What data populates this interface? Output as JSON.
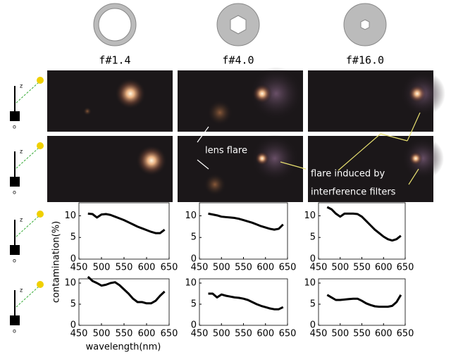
{
  "apertures": [
    "f#1.4",
    "f#4.0",
    "f#16.0"
  ],
  "setup_labels": {
    "axis": "z",
    "origin": "o"
  },
  "annotations": {
    "lens_flare": "lens flare",
    "filter_flare": [
      "flare induced by",
      "interference filters"
    ]
  },
  "y_label": "contamination(%)",
  "x_label": "wavelength(nm)",
  "chart_data": [
    {
      "type": "line",
      "x": [
        470,
        480,
        490,
        500,
        510,
        520,
        530,
        540,
        550,
        560,
        570,
        580,
        590,
        600,
        610,
        620,
        630,
        640
      ],
      "series": [
        {
          "color": "#000000",
          "values": [
            10.5,
            10.4,
            9.6,
            10.3,
            10.4,
            10.2,
            9.8,
            9.4,
            9.0,
            8.5,
            8.0,
            7.5,
            7.1,
            6.7,
            6.3,
            6.0,
            6.0,
            6.8
          ]
        }
      ],
      "xlim": [
        450,
        650
      ],
      "ylim": [
        0,
        13
      ],
      "xticks": [
        450,
        500,
        550,
        600,
        650
      ],
      "yticks": [
        0,
        5,
        10
      ]
    },
    {
      "type": "line",
      "x": [
        470,
        480,
        490,
        500,
        510,
        520,
        530,
        540,
        550,
        560,
        570,
        580,
        590,
        600,
        610,
        620,
        630,
        640
      ],
      "series": [
        {
          "color": "#000000",
          "values": [
            10.5,
            10.3,
            10.1,
            9.8,
            9.7,
            9.6,
            9.5,
            9.3,
            9.0,
            8.7,
            8.4,
            8.0,
            7.6,
            7.3,
            7.0,
            6.8,
            7.0,
            8.0
          ]
        }
      ],
      "xlim": [
        450,
        650
      ],
      "ylim": [
        0,
        13
      ],
      "xticks": [
        450,
        500,
        550,
        600,
        650
      ],
      "yticks": [
        0,
        5,
        10
      ]
    },
    {
      "type": "line",
      "x": [
        470,
        480,
        490,
        500,
        510,
        520,
        530,
        540,
        550,
        560,
        570,
        580,
        590,
        600,
        610,
        620,
        630,
        640
      ],
      "series": [
        {
          "color": "#000000",
          "values": [
            12,
            11.5,
            10.5,
            9.8,
            10.5,
            10.5,
            10.5,
            10.4,
            9.8,
            8.8,
            7.8,
            6.8,
            6.0,
            5.2,
            4.6,
            4.3,
            4.6,
            5.4
          ]
        }
      ],
      "xlim": [
        450,
        650
      ],
      "ylim": [
        0,
        13
      ],
      "xticks": [
        450,
        500,
        550,
        600,
        650
      ],
      "yticks": [
        0,
        5,
        10
      ]
    },
    {
      "type": "line",
      "x": [
        470,
        480,
        490,
        500,
        510,
        520,
        530,
        540,
        550,
        560,
        570,
        580,
        590,
        600,
        610,
        620,
        630,
        640
      ],
      "series": [
        {
          "color": "#000000",
          "values": [
            11.5,
            10.5,
            10.0,
            9.4,
            9.6,
            10.0,
            10.2,
            9.5,
            8.5,
            7.5,
            6.3,
            5.5,
            5.5,
            5.2,
            5.2,
            5.8,
            7.0,
            8.0
          ]
        }
      ],
      "xlim": [
        450,
        650
      ],
      "ylim": [
        0,
        11
      ],
      "xticks": [
        450,
        500,
        550,
        600,
        650
      ],
      "yticks": [
        0,
        5,
        10
      ]
    },
    {
      "type": "line",
      "x": [
        470,
        480,
        490,
        500,
        510,
        520,
        530,
        540,
        550,
        560,
        570,
        580,
        590,
        600,
        610,
        620,
        630,
        640
      ],
      "series": [
        {
          "color": "#000000",
          "values": [
            7.5,
            7.5,
            6.6,
            7.3,
            7.0,
            6.8,
            6.6,
            6.5,
            6.3,
            6.0,
            5.5,
            5.0,
            4.6,
            4.3,
            4.0,
            3.8,
            3.8,
            4.3
          ]
        }
      ],
      "xlim": [
        450,
        650
      ],
      "ylim": [
        0,
        11
      ],
      "xticks": [
        450,
        500,
        550,
        600,
        650
      ],
      "yticks": [
        0,
        5,
        10
      ]
    },
    {
      "type": "line",
      "x": [
        470,
        480,
        490,
        500,
        510,
        520,
        530,
        540,
        550,
        560,
        570,
        580,
        590,
        600,
        610,
        620,
        630,
        640
      ],
      "series": [
        {
          "color": "#000000",
          "values": [
            7.2,
            6.6,
            6.0,
            6.0,
            6.1,
            6.2,
            6.3,
            6.3,
            5.8,
            5.2,
            4.8,
            4.5,
            4.4,
            4.4,
            4.4,
            4.6,
            5.5,
            7.2
          ]
        }
      ],
      "xlim": [
        450,
        650
      ],
      "ylim": [
        0,
        11
      ],
      "xticks": [
        450,
        500,
        550,
        600,
        650
      ],
      "yticks": [
        0,
        5,
        10
      ]
    }
  ]
}
